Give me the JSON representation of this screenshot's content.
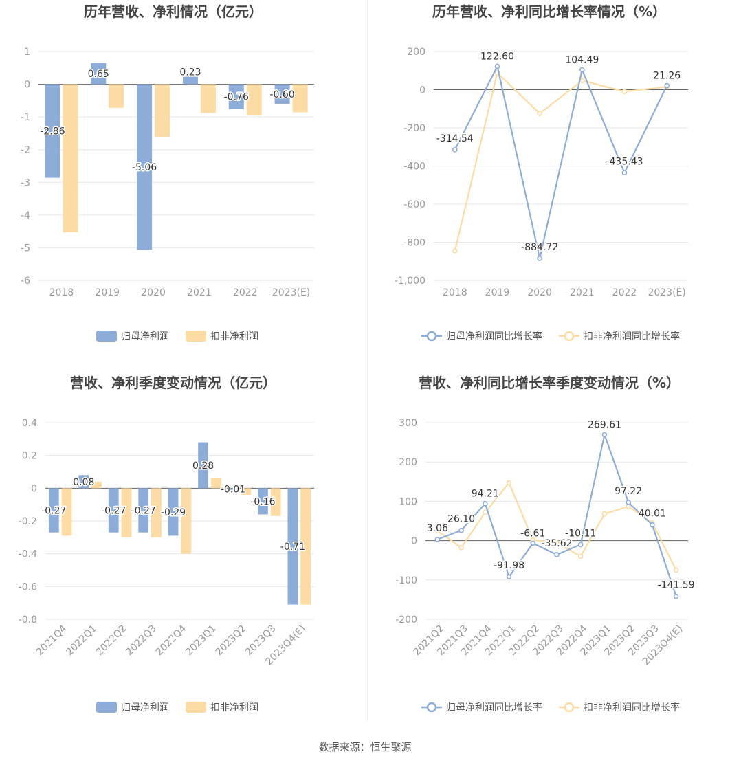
{
  "source": "数据来源：恒生聚源",
  "colors": {
    "blue": "#8eacd8",
    "orange": "#fcdca4",
    "label": "#333333",
    "tick": "#999999",
    "grid": "#e6e6ef",
    "axis": "#666666"
  },
  "chart_data": [
    {
      "type": "bar",
      "title": "历年营收、净利情况（亿元）",
      "categories": [
        "2018",
        "2019",
        "2020",
        "2021",
        "2022",
        "2023(E)"
      ],
      "series": [
        {
          "name": "归母净利润",
          "values": [
            -2.86,
            0.65,
            -5.06,
            0.23,
            -0.76,
            -0.6
          ],
          "labels": [
            "-2.86",
            "0.65",
            "-5.06",
            "0.23",
            "-0.76",
            "-0.60"
          ]
        },
        {
          "name": "扣非净利润",
          "values": [
            -4.53,
            -0.72,
            -1.62,
            -0.88,
            -0.96,
            -0.86
          ]
        }
      ],
      "yticks": [
        "1",
        "0",
        "-1",
        "-2",
        "-3",
        "-4",
        "-5",
        "-6"
      ],
      "ylim": [
        -6,
        1
      ],
      "legend": "bottom"
    },
    {
      "type": "line",
      "title": "历年营收、净利同比增长率情况（%）",
      "categories": [
        "2018",
        "2019",
        "2020",
        "2021",
        "2022",
        "2023(E)"
      ],
      "series": [
        {
          "name": "归母净利润同比增长率",
          "values": [
            -314.54,
            122.6,
            -884.72,
            104.49,
            -435.43,
            21.26
          ],
          "labels": [
            "-314.54",
            "122.60",
            "-884.72",
            "104.49",
            "-435.43",
            "21.26"
          ]
        },
        {
          "name": "扣非净利润同比增长率",
          "values": [
            -845,
            88,
            -125,
            48,
            -10,
            15
          ]
        }
      ],
      "yticks": [
        "200",
        "0",
        "-200",
        "-400",
        "-600",
        "-800",
        "-1,000"
      ],
      "ylim": [
        -1000,
        200
      ],
      "legend": "bottom"
    },
    {
      "type": "bar",
      "title": "营收、净利季度变动情况（亿元）",
      "categories": [
        "2021Q4",
        "2022Q1",
        "2022Q2",
        "2022Q3",
        "2022Q4",
        "2023Q1",
        "2023Q2",
        "2023Q3",
        "2023Q4(E)"
      ],
      "series": [
        {
          "name": "归母净利润",
          "values": [
            -0.27,
            0.08,
            -0.27,
            -0.27,
            -0.29,
            0.28,
            -0.01,
            -0.16,
            -0.71
          ],
          "labels": [
            "-0.27",
            "0.08",
            "-0.27",
            "-0.27",
            "-0.29",
            "0.28",
            "-0.01",
            "-0.16",
            "-0.71"
          ]
        },
        {
          "name": "扣非净利润",
          "values": [
            -0.29,
            0.04,
            -0.3,
            -0.3,
            -0.4,
            0.06,
            -0.04,
            -0.17,
            -0.71
          ]
        }
      ],
      "yticks": [
        "0.4",
        "0.2",
        "0",
        "-0.2",
        "-0.4",
        "-0.6",
        "-0.8"
      ],
      "ylim": [
        -0.8,
        0.4
      ],
      "legend": "bottom"
    },
    {
      "type": "line",
      "title": "营收、净利同比增长率季度变动情况（%）",
      "categories": [
        "2021Q2",
        "2021Q3",
        "2021Q4",
        "2022Q1",
        "2022Q2",
        "2022Q3",
        "2022Q4",
        "2023Q1",
        "2023Q2",
        "2023Q3",
        "2023Q4(E)"
      ],
      "series": [
        {
          "name": "归母净利润同比增长率",
          "values": [
            3.06,
            26.1,
            94.21,
            -91.98,
            -6.61,
            -35.62,
            -10.11,
            269.61,
            97.22,
            40.01,
            -141.59
          ],
          "labels": [
            "3.06",
            "26.10",
            "94.21",
            "-91.98",
            "-6.61",
            "-35.62",
            "-10.11",
            "269.61",
            "97.22",
            "40.01",
            "-141.59"
          ]
        },
        {
          "name": "扣非净利润同比增长率",
          "values": [
            25,
            -18,
            72,
            147,
            2,
            -5,
            -40,
            68,
            87,
            45,
            -75
          ]
        }
      ],
      "yticks": [
        "300",
        "200",
        "100",
        "0",
        "-100",
        "-200"
      ],
      "ylim": [
        -200,
        300
      ],
      "legend": "bottom"
    }
  ]
}
